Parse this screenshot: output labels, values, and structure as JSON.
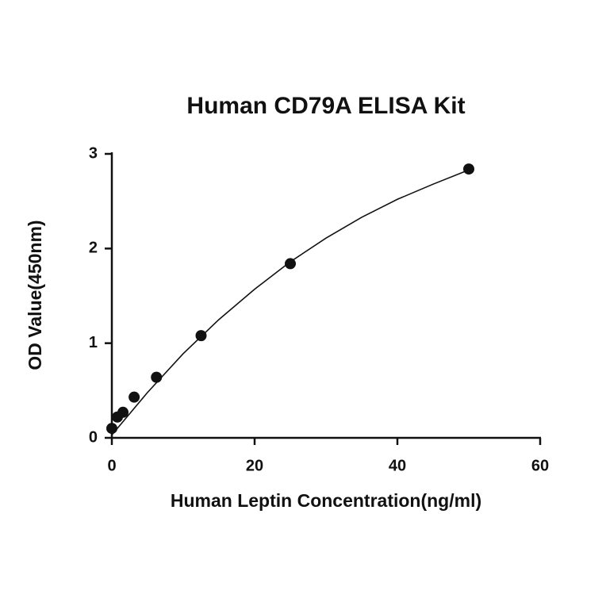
{
  "chart_data": {
    "type": "scatter",
    "title": "Human CD79A ELISA Kit",
    "xlabel": "Human Leptin Concentration(ng/ml)",
    "ylabel": "OD Value(450nm)",
    "x": [
      0,
      0.78,
      1.56,
      3.125,
      6.25,
      12.5,
      25,
      50
    ],
    "values": [
      0.1,
      0.22,
      0.27,
      0.43,
      0.64,
      1.08,
      1.84,
      2.84
    ],
    "color": "#111111",
    "curve": {
      "x": [
        0,
        5,
        10,
        15,
        20,
        25,
        30,
        35,
        40,
        45,
        50
      ],
      "values": [
        0.03,
        0.48,
        0.89,
        1.25,
        1.57,
        1.86,
        2.11,
        2.33,
        2.52,
        2.68,
        2.83
      ]
    },
    "xlim": [
      0,
      60
    ],
    "xticks": [
      0,
      20,
      40,
      60
    ],
    "ylim": [
      0,
      3
    ],
    "yticks": [
      0,
      1,
      2,
      3
    ]
  }
}
